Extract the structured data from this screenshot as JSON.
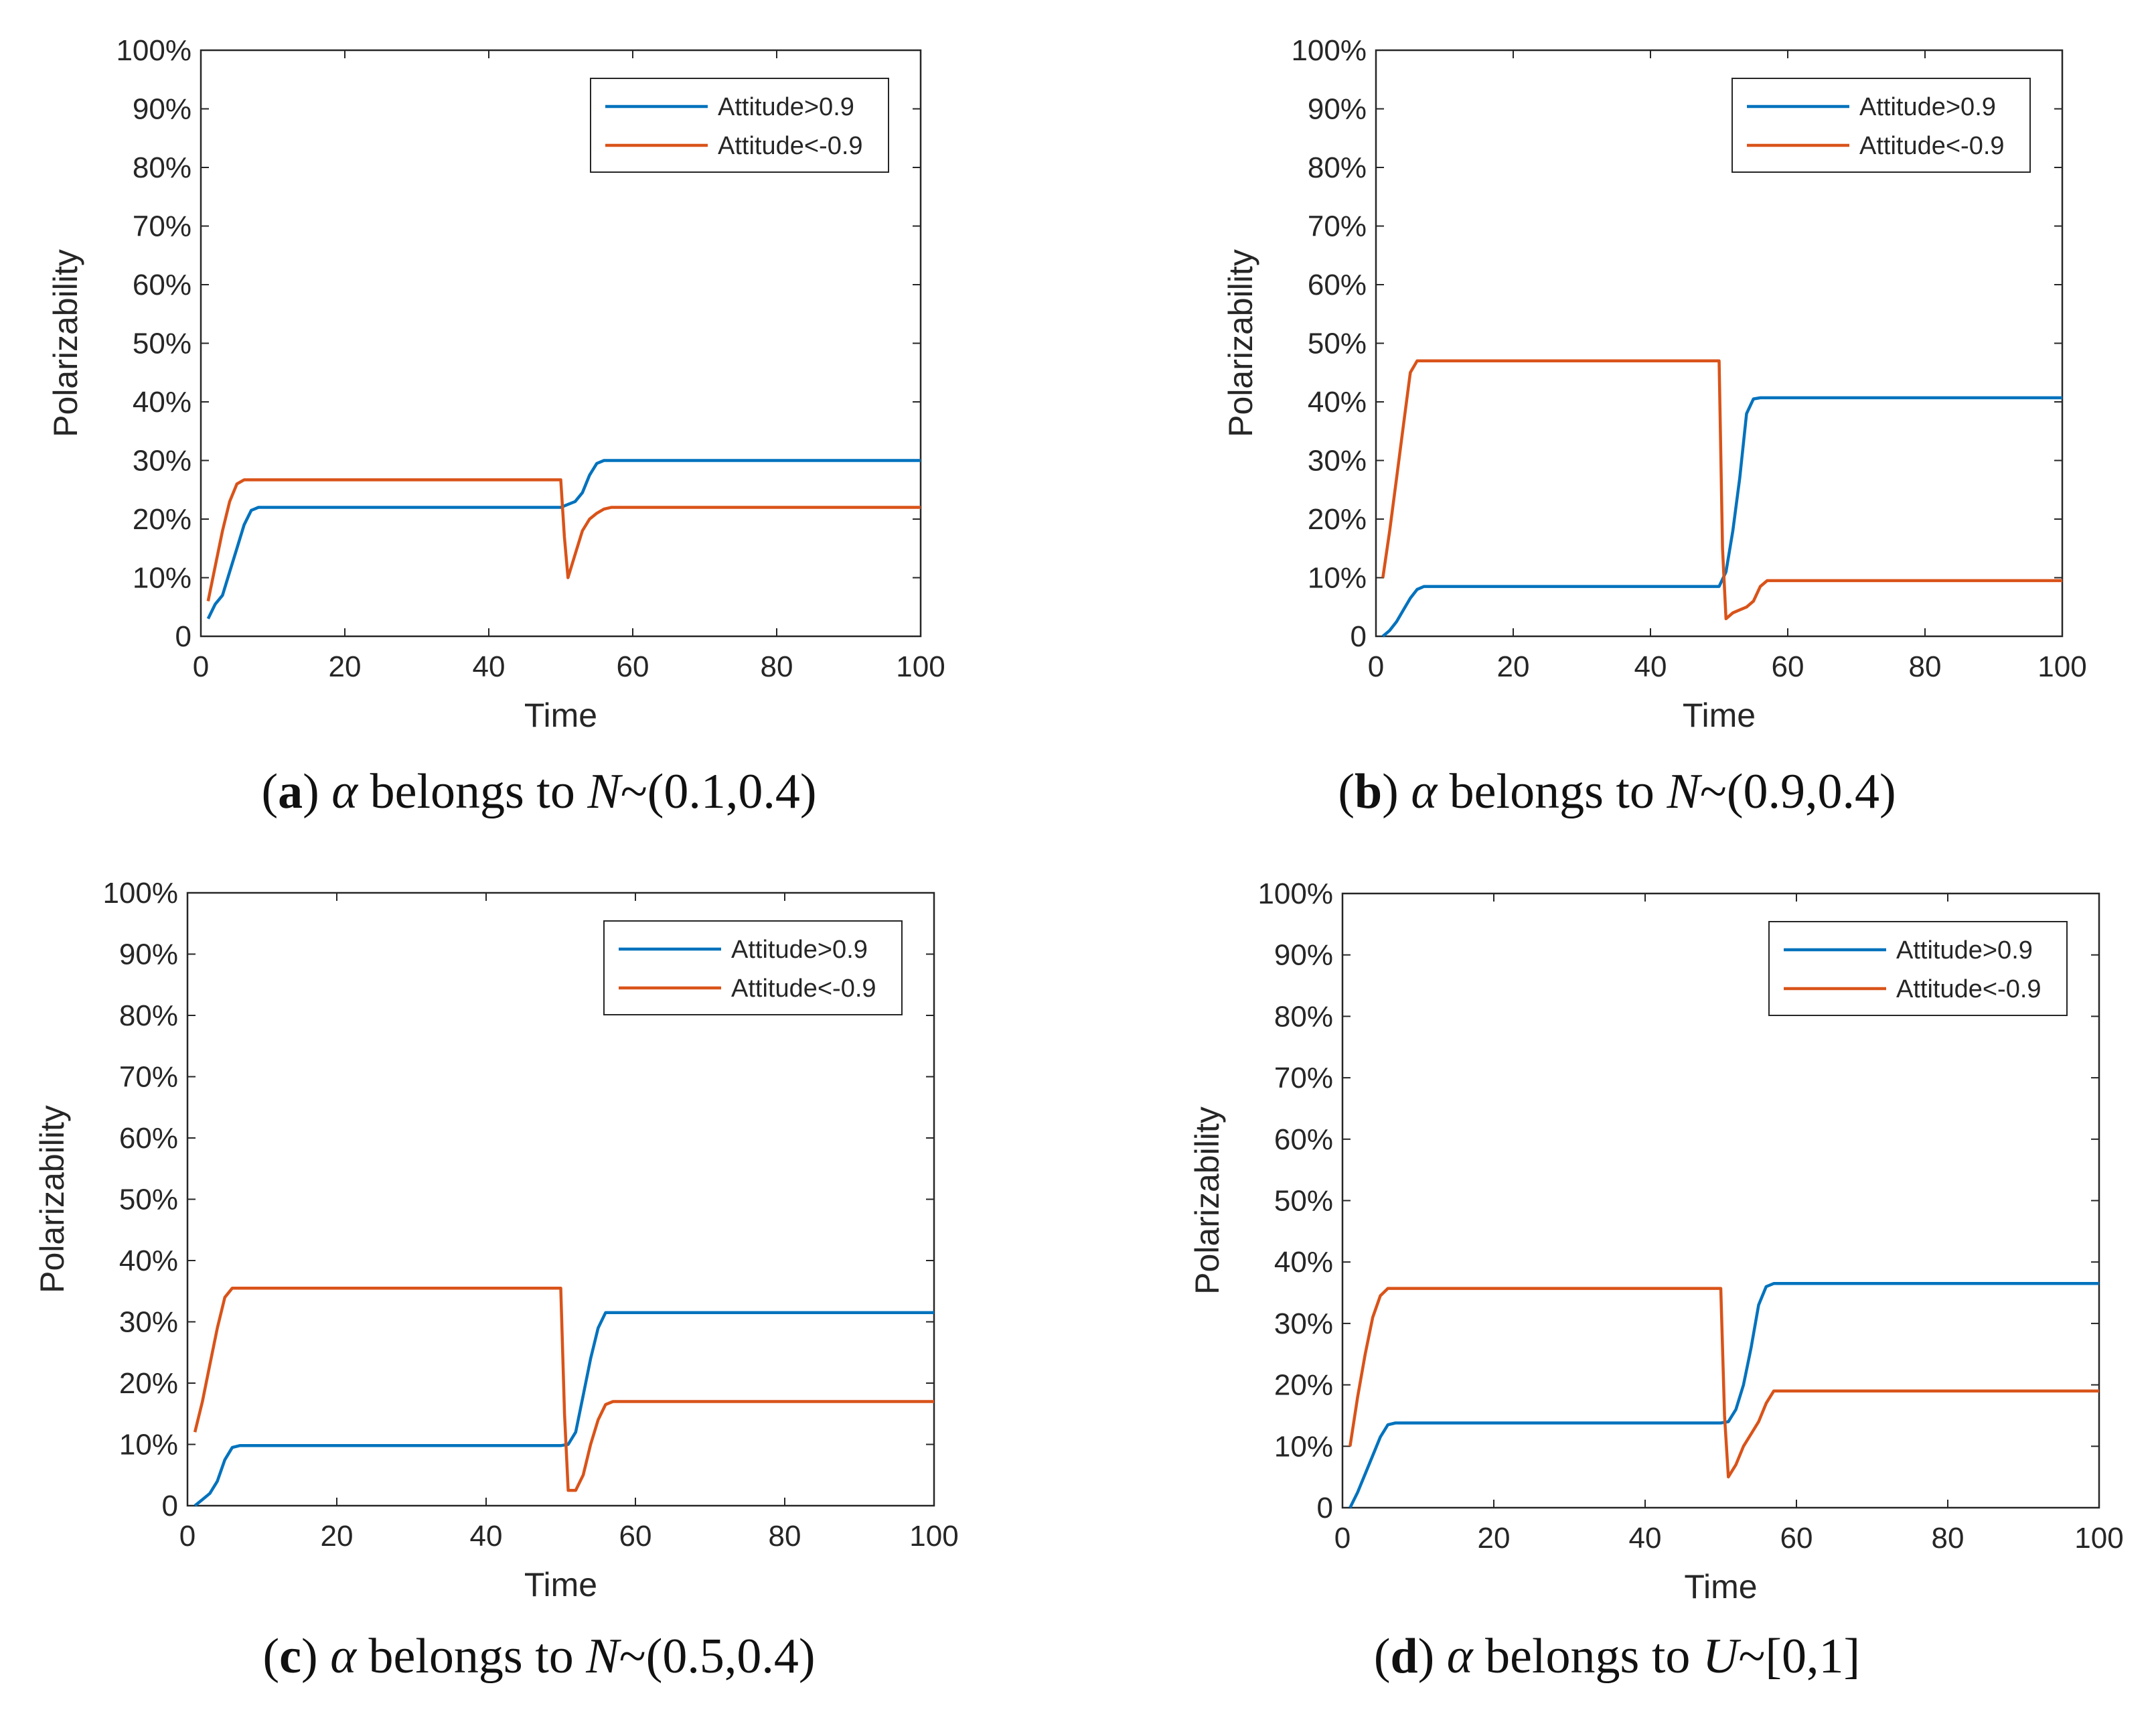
{
  "colors": {
    "attitude_pos": "#0072BD",
    "attitude_neg": "#D95319",
    "axis": "#262626"
  },
  "chart_data": [
    {
      "id": "a",
      "type": "line",
      "caption": {
        "letter": "a",
        "prefix": "(",
        "mid": ") ",
        "greek": "α",
        "text": " belongs to ",
        "dist": "N",
        "params": "~(0.1,0.4)"
      },
      "xlabel": "Time",
      "ylabel": "Polarizability",
      "xlim": [
        0,
        100
      ],
      "ylim": [
        0,
        100
      ],
      "xticks": [
        "0",
        "20",
        "40",
        "60",
        "80",
        "100"
      ],
      "yticks": [
        "0",
        "10%",
        "20%",
        "30%",
        "40%",
        "50%",
        "60%",
        "70%",
        "80%",
        "90%",
        "100%"
      ],
      "legend": {
        "position": "top-right",
        "entries": [
          "Attitude>0.9",
          "Attitude<-0.9"
        ]
      },
      "series": [
        {
          "name": "Attitude>0.9",
          "color": "#0072BD",
          "x": [
            1,
            2,
            3,
            4,
            5,
            6,
            7,
            8,
            50,
            51,
            52,
            53,
            54,
            55,
            56,
            100
          ],
          "y": [
            3,
            5.5,
            7,
            11,
            15,
            19,
            21.5,
            22,
            22,
            22.5,
            23,
            24.5,
            27.5,
            29.5,
            30,
            30
          ]
        },
        {
          "name": "Attitude<-0.9",
          "color": "#D95319",
          "x": [
            1,
            2,
            3,
            4,
            5,
            6,
            7,
            50,
            50.5,
            51,
            52,
            53,
            54,
            55,
            56,
            57,
            100
          ],
          "y": [
            6,
            12,
            18,
            23,
            26,
            26.7,
            26.7,
            26.7,
            17,
            10,
            14,
            18,
            20,
            21,
            21.7,
            22,
            22
          ]
        }
      ]
    },
    {
      "id": "b",
      "type": "line",
      "caption": {
        "letter": "b",
        "prefix": "(",
        "mid": ") ",
        "greek": "α",
        "text": " belongs to ",
        "dist": "N",
        "params": "~(0.9,0.4)"
      },
      "xlabel": "Time",
      "ylabel": "Polarizability",
      "xlim": [
        0,
        100
      ],
      "ylim": [
        0,
        100
      ],
      "xticks": [
        "0",
        "20",
        "40",
        "60",
        "80",
        "100"
      ],
      "yticks": [
        "0",
        "10%",
        "20%",
        "30%",
        "40%",
        "50%",
        "60%",
        "70%",
        "80%",
        "90%",
        "100%"
      ],
      "legend": {
        "position": "top-right",
        "entries": [
          "Attitude>0.9",
          "Attitude<-0.9"
        ]
      },
      "series": [
        {
          "name": "Attitude>0.9",
          "color": "#0072BD",
          "x": [
            1,
            2,
            3,
            4,
            5,
            6,
            7,
            8,
            50,
            51,
            52,
            53,
            54,
            55,
            56,
            100
          ],
          "y": [
            0,
            1,
            2.5,
            4.5,
            6.5,
            8,
            8.5,
            8.5,
            8.5,
            11,
            18,
            27,
            38,
            40.5,
            40.7,
            40.7
          ]
        },
        {
          "name": "Attitude<-0.9",
          "color": "#D95319",
          "x": [
            1,
            2,
            3,
            4,
            5,
            6,
            7,
            50,
            50.5,
            51,
            52,
            53,
            54,
            55,
            56,
            57,
            100
          ],
          "y": [
            10,
            18,
            27,
            36,
            45,
            47,
            47,
            47,
            15,
            3,
            4,
            4.5,
            5,
            6,
            8.5,
            9.5,
            9.5
          ]
        }
      ]
    },
    {
      "id": "c",
      "type": "line",
      "caption": {
        "letter": "c",
        "prefix": "(",
        "mid": ") ",
        "greek": "α",
        "text": " belongs to ",
        "dist": "N",
        "params": "~(0.5,0.4)"
      },
      "xlabel": "Time",
      "ylabel": "Polarizability",
      "xlim": [
        0,
        100
      ],
      "ylim": [
        0,
        100
      ],
      "xticks": [
        "0",
        "20",
        "40",
        "60",
        "80",
        "100"
      ],
      "yticks": [
        "0",
        "10%",
        "20%",
        "30%",
        "40%",
        "50%",
        "60%",
        "70%",
        "80%",
        "90%",
        "100%"
      ],
      "legend": {
        "position": "top-right",
        "entries": [
          "Attitude>0.9",
          "Attitude<-0.9"
        ]
      },
      "series": [
        {
          "name": "Attitude>0.9",
          "color": "#0072BD",
          "x": [
            1,
            2,
            3,
            4,
            5,
            6,
            7,
            50,
            51,
            52,
            53,
            54,
            55,
            56,
            100
          ],
          "y": [
            0,
            1,
            2,
            4,
            7.5,
            9.5,
            9.8,
            9.8,
            10,
            12,
            18,
            24,
            29,
            31.5,
            31.5
          ]
        },
        {
          "name": "Attitude<-0.9",
          "color": "#D95319",
          "x": [
            1,
            2,
            3,
            4,
            5,
            6,
            7,
            50,
            50.5,
            51,
            52,
            53,
            54,
            55,
            56,
            57,
            100
          ],
          "y": [
            12,
            17,
            23,
            29,
            34,
            35.5,
            35.5,
            35.5,
            15,
            2.5,
            2.5,
            5,
            10,
            14,
            16.5,
            17,
            17
          ]
        }
      ]
    },
    {
      "id": "d",
      "type": "line",
      "caption": {
        "letter": "d",
        "prefix": "(",
        "mid": ") ",
        "greek": "α",
        "text": " belongs to ",
        "dist": "U",
        "params": "~[0,1]"
      },
      "xlabel": "Time",
      "ylabel": "Polarizability",
      "xlim": [
        0,
        100
      ],
      "ylim": [
        0,
        100
      ],
      "xticks": [
        "0",
        "20",
        "40",
        "60",
        "80",
        "100"
      ],
      "yticks": [
        "0",
        "10%",
        "20%",
        "30%",
        "40%",
        "50%",
        "60%",
        "70%",
        "80%",
        "90%",
        "100%"
      ],
      "legend": {
        "position": "top-right",
        "entries": [
          "Attitude>0.9",
          "Attitude<-0.9"
        ]
      },
      "series": [
        {
          "name": "Attitude>0.9",
          "color": "#0072BD",
          "x": [
            1,
            2,
            3,
            4,
            5,
            6,
            7,
            50,
            51,
            52,
            53,
            54,
            55,
            56,
            57,
            100
          ],
          "y": [
            0,
            2.5,
            5.5,
            8.5,
            11.5,
            13.5,
            13.8,
            13.8,
            14,
            16,
            20,
            26,
            33,
            36,
            36.5,
            36.5
          ]
        },
        {
          "name": "Attitude<-0.9",
          "color": "#D95319",
          "x": [
            1,
            2,
            3,
            4,
            5,
            6,
            7,
            50,
            50.5,
            51,
            52,
            53,
            54,
            55,
            56,
            57,
            100
          ],
          "y": [
            10,
            18,
            25,
            31,
            34.5,
            35.7,
            35.7,
            35.7,
            15,
            5,
            7,
            10,
            12,
            14,
            17,
            19,
            19
          ]
        }
      ]
    }
  ]
}
